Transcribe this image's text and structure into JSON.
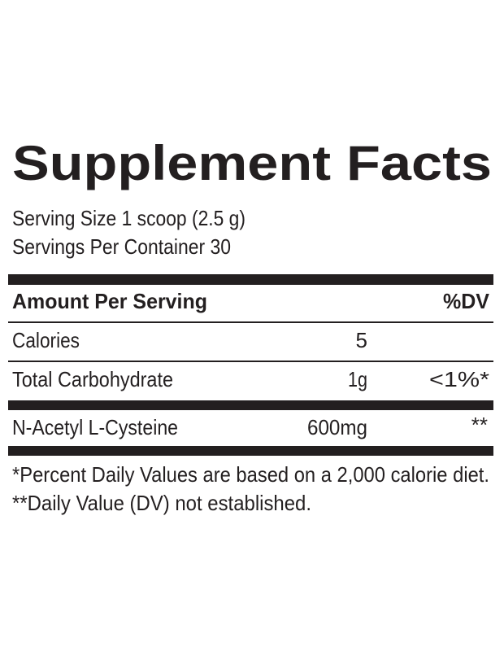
{
  "title": "Supplement Facts",
  "serving": [
    "Serving Size 1 scoop (2.5 g)",
    "Servings Per Container 30"
  ],
  "table": {
    "header": {
      "name": "Amount Per Serving",
      "dv": "%DV"
    },
    "rows": [
      {
        "name": "Calories",
        "amount": "5"
      },
      {
        "name": "Total Carbohydrate",
        "amount": "1g",
        "dv": "<1%*"
      },
      {
        "name": "N-Acetyl L-Cysteine",
        "amount": "600mg",
        "dv": "**"
      }
    ]
  },
  "footnotes": [
    "*Percent Daily Values are based on a 2,000 calorie diet.",
    "**Daily Value (DV) not established."
  ]
}
